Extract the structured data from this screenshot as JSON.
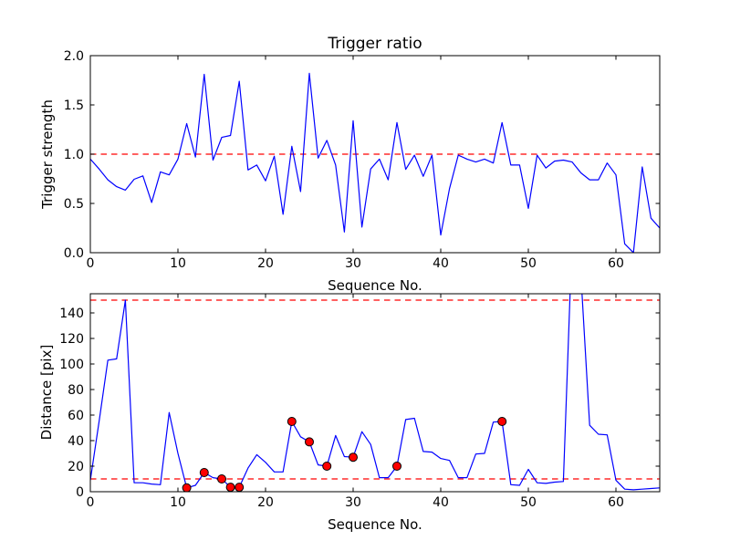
{
  "figure": {
    "background": "#ffffff",
    "line_color": "#0000ff",
    "threshold_color": "#ff0000",
    "marker_face_color": "#ff0000",
    "marker_edge_color": "#000000",
    "frame_color": "#000000"
  },
  "chart_data": [
    {
      "type": "line",
      "name": "trigger-ratio",
      "title": "Trigger ratio",
      "xlabel": "Sequence No.",
      "ylabel": "Trigger strength",
      "xlim": [
        0,
        65
      ],
      "ylim": [
        0,
        2.0
      ],
      "grid": false,
      "legend": "none",
      "xticks": {
        "values": [
          0,
          10,
          20,
          30,
          40,
          50,
          60
        ],
        "labels": [
          "0",
          "10",
          "20",
          "30",
          "40",
          "50",
          "60"
        ]
      },
      "yticks": {
        "values": [
          0,
          0.5,
          1.0,
          1.5,
          2.0
        ],
        "labels": [
          "0.0",
          "0.5",
          "1.0",
          "1.5",
          "2.0"
        ]
      },
      "thresholds": [
        {
          "name": "trigger-threshold-line",
          "value": 1.0,
          "color": "#ff0000",
          "style": "dashed"
        }
      ],
      "line": {
        "name": "trigger-strength-series",
        "color": "#0000ff",
        "x": [
          0,
          1,
          2,
          3,
          4,
          5,
          6,
          7,
          8,
          9,
          10,
          11,
          12,
          13,
          14,
          15,
          16,
          17,
          18,
          19,
          20,
          21,
          22,
          23,
          24,
          25,
          26,
          27,
          28,
          29,
          30,
          31,
          32,
          33,
          34,
          35,
          36,
          37,
          38,
          39,
          40,
          41,
          42,
          43,
          44,
          45,
          46,
          47,
          48,
          49,
          50,
          51,
          52,
          53,
          54,
          55,
          56,
          57,
          58,
          59,
          60,
          61,
          62,
          63,
          64,
          65
        ],
        "y": [
          0.95,
          0.85,
          0.74,
          0.67,
          0.635,
          0.745,
          0.78,
          0.51,
          0.82,
          0.79,
          0.95,
          1.31,
          0.97,
          1.81,
          0.94,
          1.17,
          1.19,
          1.74,
          0.84,
          0.89,
          0.73,
          0.98,
          0.39,
          1.08,
          0.62,
          1.82,
          0.96,
          1.14,
          0.89,
          0.21,
          1.34,
          0.26,
          0.85,
          0.95,
          0.74,
          1.32,
          0.845,
          0.99,
          0.775,
          0.99,
          0.18,
          0.65,
          0.99,
          0.95,
          0.92,
          0.95,
          0.91,
          1.32,
          0.89,
          0.89,
          0.45,
          0.99,
          0.86,
          0.93,
          0.94,
          0.92,
          0.81,
          0.74,
          0.74,
          0.91,
          0.79,
          0.09,
          0.0,
          0.87,
          0.35,
          0.25
        ]
      }
    },
    {
      "type": "line",
      "name": "distance",
      "title": "",
      "xlabel": "Sequence No.",
      "ylabel": "Distance [pix]",
      "xlim": [
        0,
        65
      ],
      "ylim": [
        0,
        155
      ],
      "grid": false,
      "legend": "none",
      "xticks": {
        "values": [
          0,
          10,
          20,
          30,
          40,
          50,
          60
        ],
        "labels": [
          "0",
          "10",
          "20",
          "30",
          "40",
          "50",
          "60"
        ]
      },
      "yticks": {
        "values": [
          0,
          20,
          40,
          60,
          80,
          100,
          120,
          140
        ],
        "labels": [
          "0",
          "20",
          "40",
          "60",
          "80",
          "100",
          "120",
          "140"
        ]
      },
      "thresholds": [
        {
          "name": "distance-upper-threshold-line",
          "value": 150,
          "color": "#ff0000",
          "style": "dashed"
        },
        {
          "name": "distance-lower-threshold-line",
          "value": 10,
          "color": "#ff0000",
          "style": "dashed"
        }
      ],
      "line": {
        "name": "distance-series",
        "color": "#0000ff",
        "x": [
          0,
          1,
          2,
          3,
          4,
          5,
          6,
          7,
          8,
          9,
          10,
          11,
          12,
          13,
          14,
          15,
          16,
          17,
          18,
          19,
          20,
          21,
          22,
          23,
          24,
          25,
          26,
          27,
          28,
          29,
          30,
          31,
          32,
          33,
          34,
          35,
          36,
          37,
          38,
          39,
          40,
          41,
          42,
          43,
          44,
          45,
          46,
          47,
          48,
          49,
          50,
          51,
          52,
          53,
          54,
          55,
          56,
          57,
          58,
          59,
          60,
          61,
          62,
          63,
          64,
          65
        ],
        "y": [
          9,
          55,
          103,
          104,
          150,
          7,
          7,
          6,
          5.5,
          62,
          30,
          3,
          5,
          15,
          11,
          10,
          3.5,
          3.5,
          18.5,
          29,
          23,
          15.5,
          15.5,
          55,
          43,
          39,
          21,
          20,
          44,
          27.5,
          27,
          47,
          37,
          11,
          11,
          20,
          56.5,
          57.5,
          31.5,
          31,
          26,
          24.5,
          11,
          11,
          29.5,
          30,
          54.5,
          55,
          5.5,
          5,
          17.5,
          7,
          6.5,
          7.5,
          8,
          200,
          170,
          52,
          45,
          44.5,
          9,
          2,
          1.5,
          2,
          2.5,
          3
        ]
      },
      "markers": {
        "name": "flagged-points",
        "color": "#ff0000",
        "edge_color": "#000000",
        "points": [
          [
            11,
            3
          ],
          [
            13,
            15
          ],
          [
            15,
            10
          ],
          [
            16,
            3.5
          ],
          [
            17,
            3.5
          ],
          [
            23,
            55
          ],
          [
            25,
            39
          ],
          [
            27,
            20
          ],
          [
            30,
            27
          ],
          [
            35,
            20
          ],
          [
            47,
            55
          ]
        ]
      }
    }
  ]
}
